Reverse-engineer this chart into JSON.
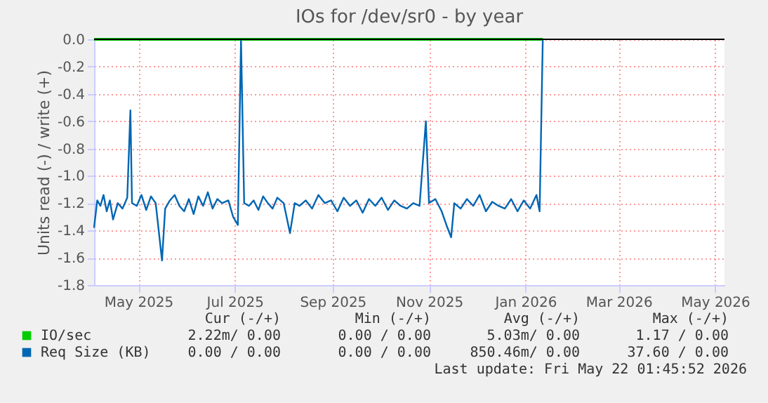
{
  "chart_data": {
    "type": "line",
    "title": "IOs for /dev/sr0 - by year",
    "ylabel": "Units read (-) / write (+)",
    "xlim": [
      "2025-04-18",
      "2026-05-22"
    ],
    "xticks": [
      {
        "value": "2025-05-16",
        "label": "May 2025"
      },
      {
        "value": "2025-07-16",
        "label": "Jul 2025"
      },
      {
        "value": "2025-09-16",
        "label": "Sep 2025"
      },
      {
        "value": "2025-11-16",
        "label": "Nov 2025"
      },
      {
        "value": "2026-01-16",
        "label": "Jan 2026"
      },
      {
        "value": "2026-03-16",
        "label": "Mar 2026"
      },
      {
        "value": "2026-05-16",
        "label": "May 2026"
      }
    ],
    "ylim": [
      -1.8,
      0.0
    ],
    "yticks": [
      {
        "value": -1.8,
        "label": "-1.8"
      },
      {
        "value": -1.6,
        "label": "-1.6"
      },
      {
        "value": -1.4,
        "label": "-1.4"
      },
      {
        "value": -1.2,
        "label": "-1.2"
      },
      {
        "value": -1.0,
        "label": "-1.0"
      },
      {
        "value": -0.8,
        "label": "-0.8"
      },
      {
        "value": -0.6,
        "label": "-0.6"
      },
      {
        "value": -0.4,
        "label": "-0.4"
      },
      {
        "value": -0.2,
        "label": "-0.2"
      },
      {
        "value": 0.0,
        "label": "0.0"
      }
    ],
    "grid": true,
    "legend": "bottom",
    "marker": "none",
    "line_style": "solid",
    "ref_lines": [
      {
        "axis": "y",
        "value": 0,
        "color": "#000000"
      }
    ],
    "series": [
      {
        "name": "IO/sec",
        "color": "#00cc00",
        "x": [
          "2025-04-18",
          "2026-01-27"
        ],
        "values": [
          0,
          0
        ]
      },
      {
        "name": "Req Size (KB)",
        "color": "#0066b3",
        "x": [
          "2025-04-18",
          "2025-04-20",
          "2025-04-22",
          "2025-04-24",
          "2025-04-26",
          "2025-04-28",
          "2025-04-30",
          "2025-05-03",
          "2025-05-06",
          "2025-05-09",
          "2025-05-11",
          "2025-05-12",
          "2025-05-15",
          "2025-05-18",
          "2025-05-21",
          "2025-05-24",
          "2025-05-27",
          "2025-05-31",
          "2025-06-02",
          "2025-06-05",
          "2025-06-08",
          "2025-06-11",
          "2025-06-14",
          "2025-06-17",
          "2025-06-20",
          "2025-06-23",
          "2025-06-26",
          "2025-06-29",
          "2025-07-02",
          "2025-07-05",
          "2025-07-08",
          "2025-07-12",
          "2025-07-15",
          "2025-07-18",
          "2025-07-20",
          "2025-07-22",
          "2025-07-25",
          "2025-07-28",
          "2025-07-31",
          "2025-08-03",
          "2025-08-06",
          "2025-08-09",
          "2025-08-12",
          "2025-08-16",
          "2025-08-20",
          "2025-08-23",
          "2025-08-26",
          "2025-08-30",
          "2025-09-03",
          "2025-09-07",
          "2025-09-11",
          "2025-09-15",
          "2025-09-19",
          "2025-09-23",
          "2025-09-27",
          "2025-10-01",
          "2025-10-05",
          "2025-10-09",
          "2025-10-13",
          "2025-10-17",
          "2025-10-21",
          "2025-10-25",
          "2025-10-29",
          "2025-11-02",
          "2025-11-06",
          "2025-11-10",
          "2025-11-14",
          "2025-11-16",
          "2025-11-20",
          "2025-11-24",
          "2025-11-27",
          "2025-11-30",
          "2025-12-02",
          "2025-12-06",
          "2025-12-10",
          "2025-12-14",
          "2025-12-18",
          "2025-12-22",
          "2025-12-26",
          "2025-12-30",
          "2026-01-03",
          "2026-01-07",
          "2026-01-11",
          "2026-01-15",
          "2026-01-19",
          "2026-01-23",
          "2026-01-25",
          "2026-01-27"
        ],
        "values": [
          -1.38,
          -1.18,
          -1.22,
          -1.14,
          -1.26,
          -1.18,
          -1.32,
          -1.2,
          -1.24,
          -1.16,
          -0.52,
          -1.2,
          -1.22,
          -1.14,
          -1.25,
          -1.15,
          -1.2,
          -1.62,
          -1.24,
          -1.18,
          -1.14,
          -1.22,
          -1.26,
          -1.17,
          -1.28,
          -1.15,
          -1.22,
          -1.12,
          -1.24,
          -1.17,
          -1.2,
          -1.18,
          -1.3,
          -1.36,
          0.0,
          -1.2,
          -1.22,
          -1.18,
          -1.25,
          -1.15,
          -1.2,
          -1.24,
          -1.16,
          -1.2,
          -1.42,
          -1.2,
          -1.22,
          -1.18,
          -1.24,
          -1.14,
          -1.2,
          -1.18,
          -1.26,
          -1.16,
          -1.22,
          -1.18,
          -1.27,
          -1.17,
          -1.22,
          -1.16,
          -1.25,
          -1.18,
          -1.22,
          -1.24,
          -1.2,
          -1.22,
          -0.6,
          -1.2,
          -1.17,
          -1.26,
          -1.36,
          -1.45,
          -1.2,
          -1.24,
          -1.17,
          -1.22,
          -1.14,
          -1.26,
          -1.19,
          -1.22,
          -1.24,
          -1.17,
          -1.26,
          -1.18,
          -1.24,
          -1.14,
          -1.26,
          0.0
        ]
      }
    ],
    "annotations": [
      "Cur (-/+)",
      "Min (-/+)",
      "Avg (-/+)",
      "Max (-/+)",
      "2.22m/  0.00",
      "0.00 /  0.00",
      "5.03m/  0.00",
      "1.17 /  0.00",
      "0.00 /  0.00",
      "0.00 /  0.00",
      "850.46m/  0.00",
      "37.60 /  0.00",
      "Last update: Fri May 22 01:45:52 2026"
    ]
  }
}
